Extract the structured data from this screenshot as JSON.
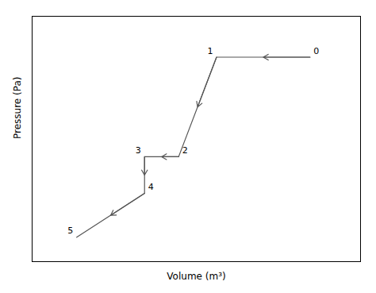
{
  "chart_data": {
    "type": "line",
    "x": [
      27.0,
      19.6,
      16.6,
      13.9,
      13.9,
      8.53
    ],
    "values": [
      10000,
      10000,
      5130,
      5130,
      3340,
      1190
    ],
    "annotations": [
      "0",
      "1",
      "2",
      "3",
      "4",
      "5"
    ],
    "xlabel": "Volume (m³)",
    "ylabel": "Pressure (Pa)",
    "xlim": [
      5,
      31
    ],
    "ylim": [
      0,
      12000
    ],
    "tick_labels": false,
    "grid": false,
    "color": "#555555",
    "marker": "arrow"
  }
}
